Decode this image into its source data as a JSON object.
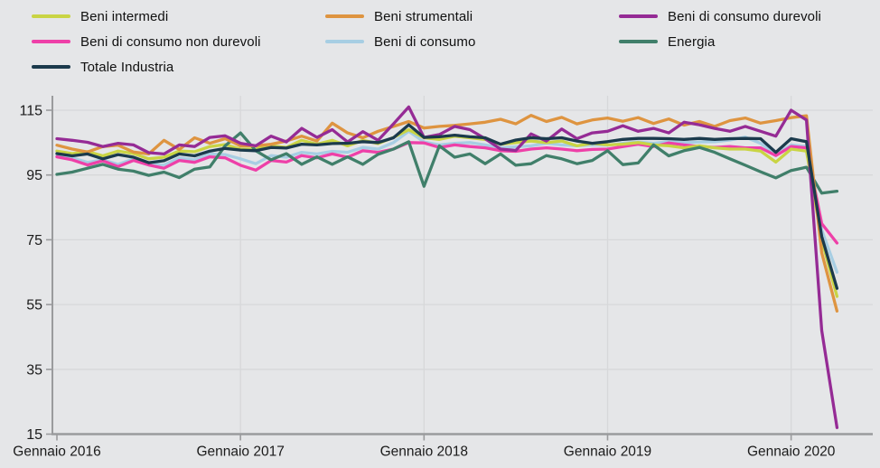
{
  "colors": {
    "background": "#e5e6e8",
    "gridline": "#d7d8da",
    "axis": "#9a9b9d",
    "text": "#1b1b1b"
  },
  "chart_data": {
    "type": "line",
    "title": "",
    "xlabel": "",
    "ylabel": "",
    "x_unit": "month",
    "months_total": 52,
    "x_tick_months": [
      0,
      12,
      24,
      36,
      48
    ],
    "x_tick_labels": [
      "Gennaio 2016",
      "Gennaio 2017",
      "Gennaio 2018",
      "Gennaio 2019",
      "Gennaio 2020"
    ],
    "y_ticks": [
      15,
      35,
      55,
      75,
      95,
      115
    ],
    "ylim": [
      15,
      120
    ],
    "grid": true,
    "legend_position": "top-left",
    "draw_order": [
      4,
      3,
      0,
      5,
      1,
      2,
      6
    ],
    "series": [
      {
        "key": "beni-intermedi",
        "label": "Beni intermedi",
        "color": "#c9d444",
        "values": [
          102.4,
          101.6,
          102.2,
          100.9,
          102.4,
          101.6,
          100,
          100.5,
          102.4,
          102.2,
          103.8,
          104.4,
          103,
          103,
          104,
          103.5,
          105.7,
          104.5,
          105.7,
          104,
          105.7,
          104.7,
          106.6,
          109,
          106.5,
          106,
          107,
          106.5,
          106,
          104.5,
          105,
          105.5,
          105,
          105.5,
          104,
          104.8,
          104.3,
          104.5,
          105,
          104.3,
          104,
          103.4,
          104,
          103.4,
          103,
          103,
          102.4,
          99,
          103,
          102.4,
          75,
          57.5
        ]
      },
      {
        "key": "beni-strumentali",
        "label": "Beni strumentali",
        "color": "#de9440",
        "values": [
          104.2,
          103,
          102.1,
          103.8,
          104.2,
          102.1,
          101.5,
          105.7,
          102.9,
          106.5,
          104.8,
          106.2,
          104,
          104,
          104.5,
          105.5,
          107,
          105.5,
          111,
          108,
          106.5,
          108.5,
          110,
          111.5,
          109.5,
          110,
          110.3,
          110.8,
          111.3,
          112.2,
          110.8,
          113.4,
          111.5,
          112.8,
          110.8,
          112,
          112.6,
          111.6,
          112.7,
          110.9,
          112.3,
          110.4,
          111.5,
          110,
          111.8,
          112.6,
          111,
          111.8,
          112.7,
          113.3,
          71,
          53
        ]
      },
      {
        "key": "beni-di-consumo-durevoli",
        "label": "Beni di consumo durevoli",
        "color": "#952b95",
        "values": [
          106.2,
          105.7,
          105.1,
          103.8,
          104.8,
          104.3,
          101.9,
          101.5,
          104.3,
          103.8,
          106.6,
          107.1,
          104.8,
          104,
          107,
          105.2,
          109.4,
          106.6,
          109,
          105.2,
          108.4,
          105.7,
          110.8,
          116,
          106.6,
          107.5,
          110,
          109,
          106.2,
          103,
          102.6,
          107.7,
          105.5,
          109.2,
          106.2,
          108,
          108.5,
          110.2,
          108.5,
          109.4,
          108,
          111.3,
          110.5,
          109.4,
          108.5,
          110,
          108.5,
          107,
          115,
          112,
          47,
          17
        ]
      },
      {
        "key": "beni-di-consumo-non-durevoli",
        "label": "Beni di consumo non durevoli",
        "color": "#ee40a8",
        "values": [
          100.6,
          99.7,
          98.1,
          99.4,
          97.6,
          99.5,
          98.1,
          97.1,
          99.5,
          98.9,
          100.6,
          100.3,
          98,
          96.5,
          99.5,
          99,
          101,
          100.3,
          101.5,
          100.5,
          102.5,
          102,
          103,
          105,
          104.9,
          103.5,
          104.3,
          103.8,
          103.4,
          102.5,
          102.3,
          103,
          103.4,
          103,
          102.5,
          102.9,
          103,
          103.8,
          104.5,
          103.8,
          104.9,
          104.3,
          103.8,
          103.5,
          103.8,
          103.4,
          103.4,
          101,
          103.8,
          103.4,
          80,
          74
        ]
      },
      {
        "key": "beni-di-consumo",
        "label": "Beni di consumo",
        "color": "#a7cee3",
        "values": [
          100.9,
          100.3,
          98.9,
          99.7,
          98.3,
          100,
          98.3,
          98.1,
          100.3,
          99.7,
          101.5,
          101.3,
          100,
          98.5,
          101,
          100.5,
          102,
          101.5,
          102.3,
          102,
          103.5,
          103,
          105,
          108.5,
          105.2,
          104.3,
          104.8,
          105,
          104.3,
          103.4,
          103.7,
          104,
          104.8,
          104.3,
          104,
          104.3,
          104.2,
          104.8,
          105.2,
          104.8,
          105.3,
          105,
          105.2,
          105.3,
          105.8,
          106.7,
          104.8,
          101.5,
          104.3,
          103.8,
          78,
          65
        ]
      },
      {
        "key": "energia",
        "label": "Energia",
        "color": "#407f6a",
        "values": [
          95.2,
          95.9,
          97.1,
          98.3,
          96.8,
          96.2,
          94.9,
          95.9,
          94.2,
          96.8,
          97.5,
          104,
          108,
          102.5,
          99.7,
          101.6,
          98.3,
          100.6,
          98.3,
          100.6,
          98.3,
          101.4,
          103,
          105.3,
          91.5,
          104,
          100.5,
          101.5,
          98.5,
          101.5,
          98,
          98.5,
          101,
          100,
          98.5,
          99.5,
          102.5,
          98.2,
          98.7,
          104.3,
          100.9,
          102.5,
          103.5,
          102,
          100,
          98,
          96,
          94.1,
          96.4,
          97.4,
          89.4,
          90
        ]
      },
      {
        "key": "totale-industria",
        "label": "Totale Industria",
        "color": "#1b3a4c",
        "values": [
          101.6,
          100.9,
          101.5,
          100,
          101.3,
          100.5,
          98.8,
          99.4,
          101.5,
          100.9,
          102.4,
          103.2,
          102.7,
          102.5,
          103.5,
          103.3,
          104.5,
          104.3,
          104.7,
          104.8,
          105.3,
          105,
          106.5,
          110.5,
          106.6,
          106.8,
          107.3,
          106.8,
          106.5,
          104.5,
          105.8,
          106.5,
          106.2,
          106.5,
          105.5,
          104.8,
          105.3,
          106,
          106.3,
          106.3,
          106.2,
          106,
          106.3,
          106,
          106.2,
          106.3,
          106.2,
          102,
          106.2,
          105.3,
          76,
          60
        ]
      }
    ]
  }
}
